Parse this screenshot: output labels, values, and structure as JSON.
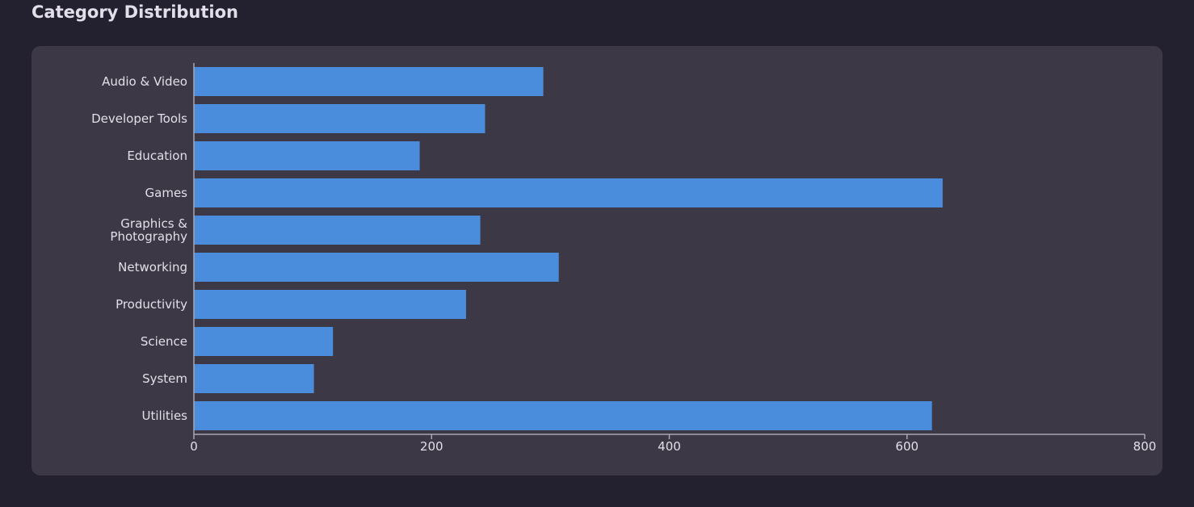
{
  "page": {
    "title": "Category Distribution"
  },
  "colors": {
    "background": "#232030",
    "card": "#3d3846",
    "bar": "#4a8ddc",
    "axis": "#a9a5b2",
    "text": "#e2dfe8"
  },
  "chart_data": {
    "type": "bar",
    "orientation": "horizontal",
    "title": "",
    "xlabel": "",
    "ylabel": "",
    "categories": [
      "Audio & Video",
      "Developer Tools",
      "Education",
      "Games",
      "Graphics & Photography",
      "Networking",
      "Productivity",
      "Science",
      "System",
      "Utilities"
    ],
    "values": [
      294,
      245,
      190,
      630,
      241,
      307,
      229,
      117,
      101,
      621
    ],
    "xlim": [
      0,
      800
    ],
    "x_ticks": [
      0,
      200,
      400,
      600,
      800
    ],
    "grid": false,
    "legend": "none"
  }
}
